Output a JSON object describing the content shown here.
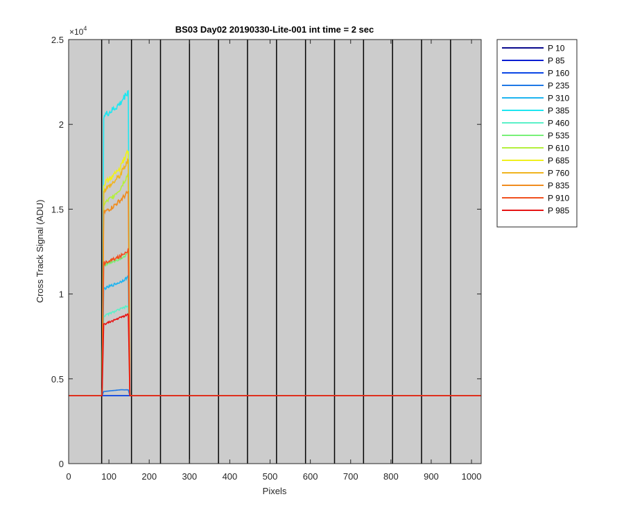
{
  "chart_data": {
    "type": "line",
    "title": "BS03 Day02 20190330-Lite-001 int time = 2 sec",
    "xlabel": "Pixels",
    "ylabel": "Cross Track Signal (ADU)",
    "y_exponent_label": "×10",
    "y_exponent_power": "4",
    "xlim": [
      0,
      1024
    ],
    "ylim": [
      0,
      25000
    ],
    "x_ticks": [
      0,
      100,
      200,
      300,
      400,
      500,
      600,
      700,
      800,
      900,
      1000
    ],
    "x_tick_labels": [
      "0",
      "100",
      "200",
      "300",
      "400",
      "500",
      "600",
      "700",
      "800",
      "900",
      "1000"
    ],
    "y_ticks": [
      0,
      5000,
      10000,
      15000,
      20000,
      25000
    ],
    "y_tick_labels": [
      "0",
      "0.5",
      "1",
      "1.5",
      "2",
      "2.5"
    ],
    "vertical_dividers": [
      82,
      156,
      228,
      300,
      372,
      444,
      516,
      588,
      660,
      732,
      804,
      876,
      948
    ],
    "background_color": "#cccccc",
    "legend_position": "outside-right",
    "baseline": 4000,
    "series": [
      {
        "name": "P 10",
        "color": "#0a0a8c",
        "plateau": [
          4000,
          4000,
          4000,
          4000
        ]
      },
      {
        "name": "P 85",
        "color": "#0a1ed2",
        "plateau": [
          4000,
          4000,
          4000,
          4000
        ]
      },
      {
        "name": "P 160",
        "color": "#0a46e6",
        "plateau": [
          4000,
          4000,
          4000,
          4000
        ]
      },
      {
        "name": "P 235",
        "color": "#1e78e6",
        "plateau": [
          4250,
          4300,
          4350,
          4350
        ]
      },
      {
        "name": "P 310",
        "color": "#1eb4f0",
        "plateau": [
          10300,
          10500,
          10700,
          11000
        ]
      },
      {
        "name": "P 385",
        "color": "#1ee6f0",
        "plateau": [
          20500,
          20800,
          21200,
          22000
        ]
      },
      {
        "name": "P 460",
        "color": "#5af0c8",
        "plateau": [
          8700,
          8900,
          9100,
          9300
        ]
      },
      {
        "name": "P 535",
        "color": "#78f078",
        "plateau": [
          11700,
          11900,
          12100,
          12400
        ]
      },
      {
        "name": "P 610",
        "color": "#b4f03c",
        "plateau": [
          15300,
          15700,
          16200,
          17100
        ]
      },
      {
        "name": "P 685",
        "color": "#f0f01e",
        "plateau": [
          16500,
          16900,
          17400,
          18500
        ]
      },
      {
        "name": "P 760",
        "color": "#f0b41e",
        "plateau": [
          16100,
          16500,
          17000,
          17900
        ]
      },
      {
        "name": "P 835",
        "color": "#f08c1e",
        "plateau": [
          14800,
          15100,
          15500,
          16000
        ]
      },
      {
        "name": "P 910",
        "color": "#f0501e",
        "plateau": [
          11800,
          12000,
          12200,
          12600
        ]
      },
      {
        "name": "P 985",
        "color": "#e61414",
        "plateau": [
          8200,
          8400,
          8600,
          8800
        ]
      }
    ],
    "signal_window": [
      85,
      150
    ]
  }
}
